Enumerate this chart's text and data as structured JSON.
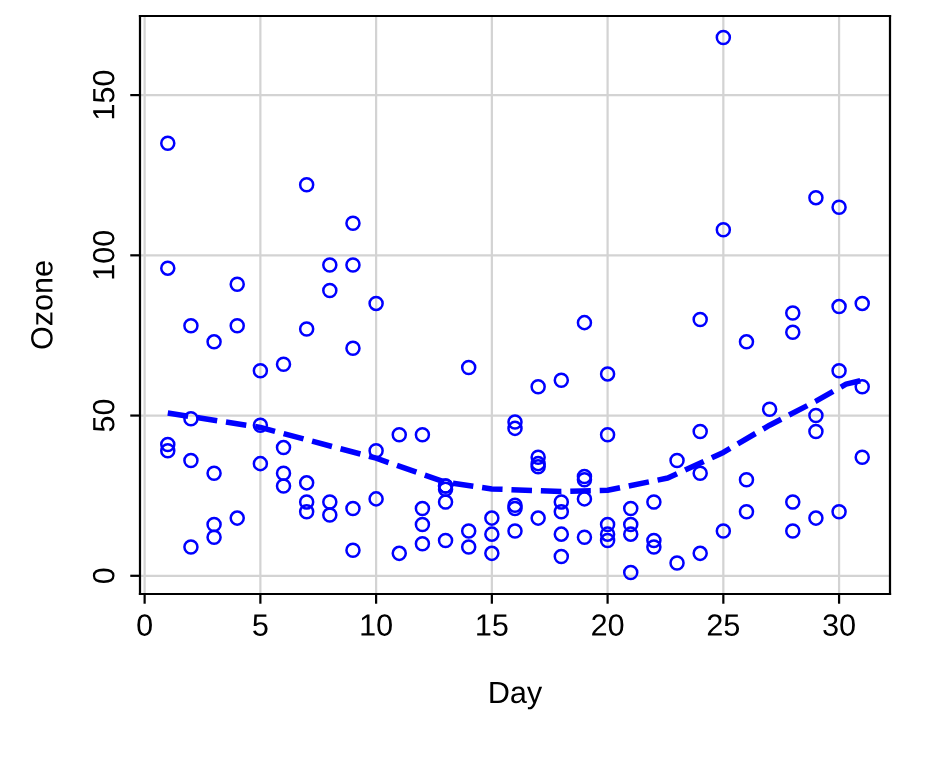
{
  "chart_data": {
    "type": "scatter",
    "xlabel": "Day",
    "ylabel": "Ozone",
    "xlim": [
      -0.2,
      32.2
    ],
    "ylim": [
      -5.68,
      174.68
    ],
    "xticks": [
      0,
      5,
      10,
      15,
      20,
      25,
      30
    ],
    "yticks": [
      0,
      50,
      100,
      150
    ],
    "grid": true,
    "series": [
      {
        "color": "#0000ff",
        "marker": "circle",
        "x": [
          1,
          2,
          3,
          4,
          6,
          7,
          8,
          9,
          11,
          12,
          13,
          14,
          15,
          16,
          17,
          18,
          19,
          20,
          21,
          22,
          23,
          24,
          28,
          29,
          30,
          31,
          7,
          9,
          10,
          13,
          16,
          17,
          18,
          19,
          20,
          1,
          2,
          3,
          5,
          6,
          7,
          8,
          9,
          10,
          12,
          13,
          15,
          16,
          17,
          18,
          19,
          20,
          21,
          24,
          25,
          26,
          27,
          28,
          29,
          30,
          31,
          1,
          2,
          3,
          4,
          5,
          6,
          7,
          8,
          9,
          12,
          13,
          14,
          16,
          17,
          18,
          19,
          20,
          21,
          22,
          24,
          25,
          26,
          28,
          29,
          30,
          31,
          1,
          2,
          3,
          4,
          5,
          6,
          7,
          8,
          9,
          10,
          11,
          12,
          13,
          14,
          15,
          16,
          17,
          18,
          19,
          20,
          21,
          22,
          23,
          24,
          25,
          26,
          28,
          29,
          30
        ],
        "values": [
          41,
          36,
          12,
          18,
          28,
          23,
          19,
          8,
          7,
          16,
          11,
          14,
          18,
          14,
          34,
          6,
          30,
          11,
          1,
          11,
          4,
          32,
          23,
          45,
          115,
          37,
          29,
          71,
          39,
          23,
          21,
          37,
          20,
          12,
          13,
          135,
          49,
          32,
          64,
          40,
          77,
          97,
          97,
          85,
          10,
          27,
          7,
          48,
          35,
          61,
          79,
          63,
          16,
          80,
          108,
          20,
          52,
          82,
          50,
          64,
          59,
          39,
          9,
          16,
          78,
          35,
          66,
          122,
          89,
          110,
          44,
          28,
          65,
          22,
          59,
          23,
          31,
          44,
          21,
          9,
          45,
          168,
          73,
          76,
          118,
          84,
          85,
          96,
          78,
          73,
          91,
          47,
          32,
          20,
          23,
          21,
          24,
          44,
          21,
          28,
          9,
          13,
          46,
          18,
          13,
          24,
          16,
          13,
          23,
          36,
          7,
          14,
          30,
          14,
          18,
          20
        ]
      },
      {
        "type": "line",
        "color": "#0000ff",
        "line_style": "dashed",
        "marker": "none",
        "x": [
          1,
          5,
          10,
          13,
          15,
          18,
          20,
          22.6,
          25,
          27,
          29,
          30.3,
          31
        ],
        "values": [
          50.8,
          46.3,
          36.7,
          29.2,
          27.1,
          26.3,
          26.7,
          30.5,
          38.5,
          47,
          54.5,
          59.8,
          61
        ]
      }
    ]
  }
}
